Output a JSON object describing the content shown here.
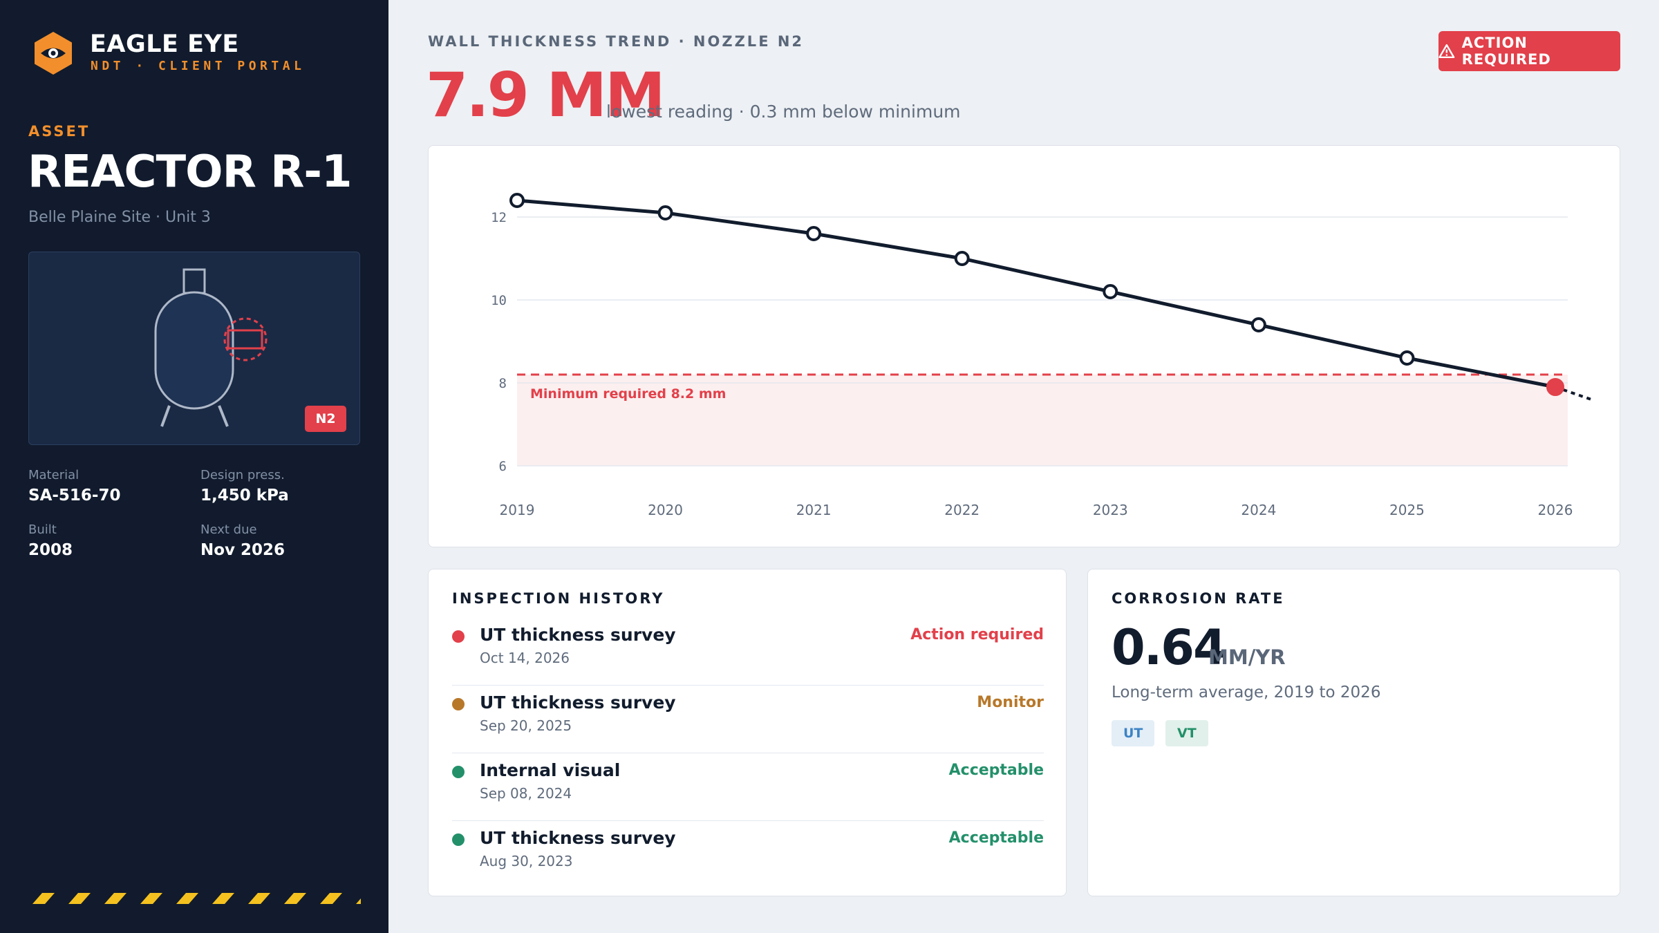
{
  "brand": {
    "name": "EAGLE EYE",
    "subtitle": "NDT · CLIENT PORTAL"
  },
  "asset": {
    "label": "ASSET",
    "name": "REACTOR R-1",
    "site": "Belle Plaine Site · Unit 3",
    "nozzle_badge": "N2",
    "specs": [
      {
        "label": "Material",
        "value": "SA-516-70"
      },
      {
        "label": "Design press.",
        "value": "1,450 kPa"
      },
      {
        "label": "Built",
        "value": "2008"
      },
      {
        "label": "Next due",
        "value": "Nov 2026"
      }
    ]
  },
  "header": {
    "trend_label": "WALL THICKNESS TREND · NOZZLE N2",
    "reading": "7.9 MM",
    "reading_note": "lowest reading · 0.3 mm below minimum",
    "action_button": "ACTION REQUIRED"
  },
  "chart_data": {
    "type": "line",
    "x": [
      2019,
      2020,
      2021,
      2022,
      2023,
      2024,
      2025,
      2026
    ],
    "series": [
      {
        "values": [
          12.4,
          12.1,
          11.6,
          11.0,
          10.2,
          9.4,
          8.6,
          7.9
        ]
      }
    ],
    "ylim": [
      6,
      12
    ],
    "yticks": [
      6,
      8,
      10,
      12
    ],
    "threshold": {
      "value": 8.2,
      "label": "Minimum required 8.2 mm"
    },
    "grid": true,
    "colors": {
      "line": "#111c2d",
      "threshold": "#e2404a",
      "zone": "#fcefef"
    }
  },
  "history": {
    "title": "INSPECTION HISTORY",
    "items": [
      {
        "title": "UT thickness survey",
        "date": "Oct 14, 2026",
        "status": "Action required",
        "color": "#e2404a"
      },
      {
        "title": "UT thickness survey",
        "date": "Sep 20, 2025",
        "status": "Monitor",
        "color": "#b8782a"
      },
      {
        "title": "Internal visual",
        "date": "Sep 08, 2024",
        "status": "Acceptable",
        "color": "#23906a"
      },
      {
        "title": "UT thickness survey",
        "date": "Aug 30, 2023",
        "status": "Acceptable",
        "color": "#23906a"
      }
    ]
  },
  "corrosion": {
    "title": "CORROSION RATE",
    "value": "0.64",
    "unit": "MM/YR",
    "note": "Long-term average, 2019 to 2026",
    "tags": [
      "UT",
      "VT"
    ]
  },
  "colors": {
    "sidebar": "#111b2d",
    "accent": "#f28f2c",
    "danger": "#e2404a",
    "ok": "#23906a",
    "warn": "#b8782a"
  }
}
